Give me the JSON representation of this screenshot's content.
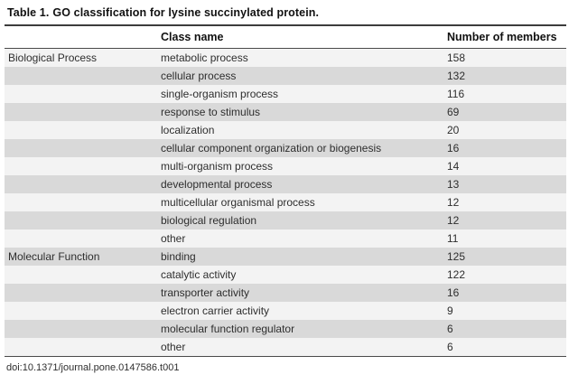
{
  "title": {
    "label": "Table 1.",
    "caption": "GO classification for lysine succinylated protein."
  },
  "columns": {
    "category": "",
    "class_name": "Class name",
    "members": "Number of members"
  },
  "table": {
    "rows": [
      {
        "category": "Biological Process",
        "class_name": "metabolic process",
        "members": "158"
      },
      {
        "category": "",
        "class_name": "cellular process",
        "members": "132"
      },
      {
        "category": "",
        "class_name": "single-organism process",
        "members": "116"
      },
      {
        "category": "",
        "class_name": "response to stimulus",
        "members": "69"
      },
      {
        "category": "",
        "class_name": "localization",
        "members": "20"
      },
      {
        "category": "",
        "class_name": "cellular component organization or biogenesis",
        "members": "16"
      },
      {
        "category": "",
        "class_name": "multi-organism process",
        "members": "14"
      },
      {
        "category": "",
        "class_name": "developmental process",
        "members": "13"
      },
      {
        "category": "",
        "class_name": "multicellular organismal process",
        "members": "12"
      },
      {
        "category": "",
        "class_name": "biological regulation",
        "members": "12"
      },
      {
        "category": "",
        "class_name": "other",
        "members": "11"
      },
      {
        "category": "Molecular Function",
        "class_name": "binding",
        "members": "125"
      },
      {
        "category": "",
        "class_name": "catalytic activity",
        "members": "122"
      },
      {
        "category": "",
        "class_name": "transporter activity",
        "members": "16"
      },
      {
        "category": "",
        "class_name": "electron carrier activity",
        "members": "9"
      },
      {
        "category": "",
        "class_name": "molecular function regulator",
        "members": "6"
      },
      {
        "category": "",
        "class_name": "other",
        "members": "6"
      }
    ]
  },
  "footer": {
    "doi": "doi:10.1371/journal.pone.0147586.t001"
  },
  "colors": {
    "row_light": "#f3f3f3",
    "row_dark": "#d9d9d9",
    "rule": "#4a4a4a",
    "text": "#2e2e2e"
  }
}
